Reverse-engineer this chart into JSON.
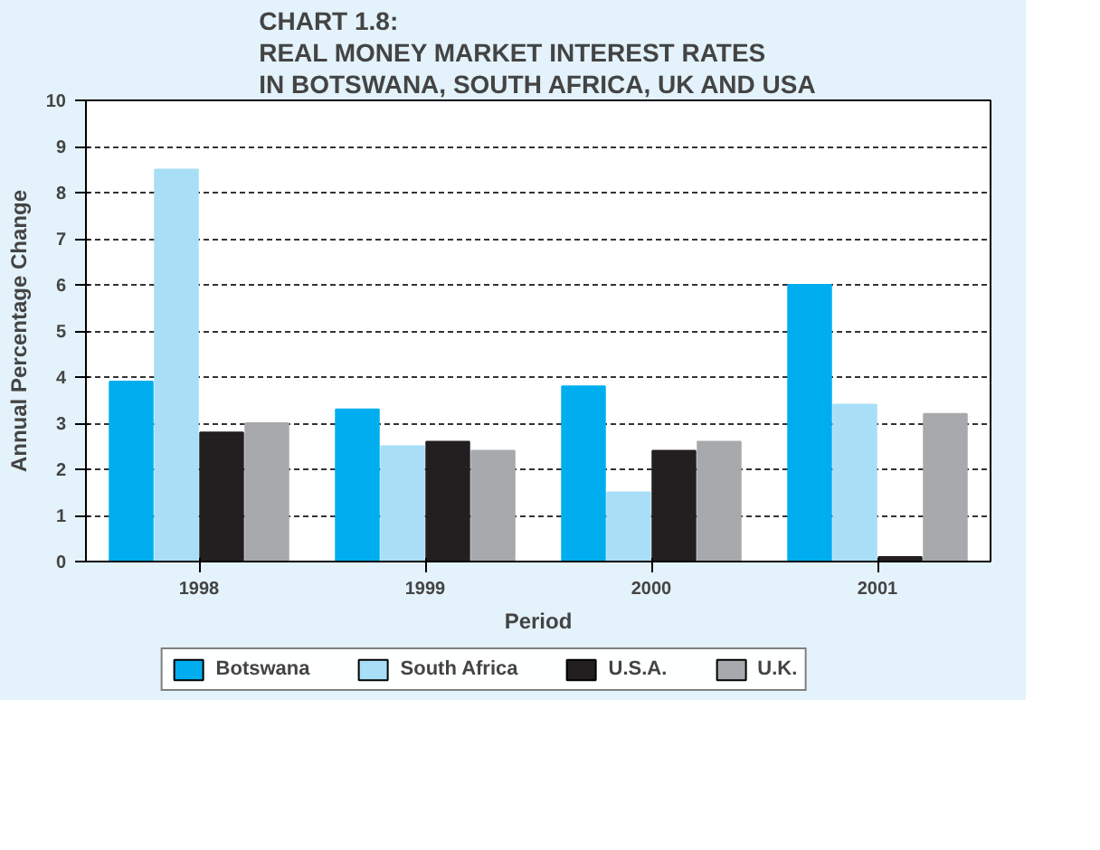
{
  "chart_data": {
    "type": "bar",
    "title": "CHART 1.8:\nREAL MONEY MARKET INTEREST RATES\nIN BOTSWANA, SOUTH AFRICA, UK AND USA",
    "xlabel": "Period",
    "ylabel": "Annual Percentage Change",
    "categories": [
      "1998",
      "1999",
      "2000",
      "2001"
    ],
    "series": [
      {
        "name": "Botswana",
        "color": "#00aeef",
        "values": [
          3.9,
          3.3,
          3.8,
          6.0
        ]
      },
      {
        "name": "South Africa",
        "color": "#a8dff7",
        "values": [
          8.5,
          2.5,
          1.5,
          3.4
        ]
      },
      {
        "name": "U.S.A.",
        "color": "#231f20",
        "values": [
          2.8,
          2.6,
          2.4,
          0.1
        ]
      },
      {
        "name": "U.K.",
        "color": "#a7a9ac",
        "values": [
          3.0,
          2.4,
          2.6,
          3.2
        ]
      }
    ],
    "ylim": [
      0,
      10
    ],
    "yticks": [
      0,
      1,
      2,
      3,
      4,
      5,
      6,
      7,
      8,
      9,
      10
    ],
    "grid": "y",
    "legend": "bottom"
  }
}
